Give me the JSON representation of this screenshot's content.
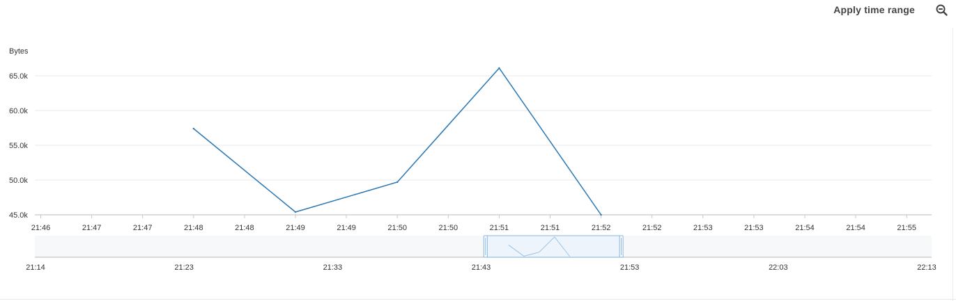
{
  "toolbar": {
    "apply_label": "Apply time range",
    "zoom_icon": "zoom-out-icon"
  },
  "colors": {
    "series": "#2a77b3",
    "grid": "#e9e9e9",
    "axis": "#c8c8c8",
    "label": "#333333",
    "navigator_bg": "#f7f8fa",
    "navigator_selection": "#eef4fb",
    "navigator_handle": "#86b6e2"
  },
  "chart_data": {
    "type": "line",
    "ylabel": "Bytes",
    "ylim": [
      45000,
      66000
    ],
    "yticks": [
      45000,
      50000,
      55000,
      60000,
      65000
    ],
    "ytick_labels": [
      "45.0k",
      "50.0k",
      "55.0k",
      "60.0k",
      "65.0k"
    ],
    "grid": true,
    "xtick_labels": [
      "21:46",
      "21:47",
      "21:47",
      "21:48",
      "21:48",
      "21:49",
      "21:49",
      "21:50",
      "21:50",
      "21:51",
      "21:51",
      "21:52",
      "21:52",
      "21:53",
      "21:53",
      "21:54",
      "21:54",
      "21:55"
    ],
    "series": [
      {
        "x_index": [
          3,
          5,
          7,
          9,
          11
        ],
        "x": [
          "21:48",
          "21:49",
          "21:50",
          "21:51",
          "21:52"
        ],
        "values": [
          57400,
          45400,
          49700,
          66100,
          45000
        ]
      }
    ],
    "navigator": {
      "tick_labels": [
        "21:14",
        "21:23",
        "21:33",
        "21:43",
        "21:53",
        "22:03",
        "22:13"
      ],
      "selection_range": [
        "21:45",
        "21:54"
      ]
    }
  }
}
